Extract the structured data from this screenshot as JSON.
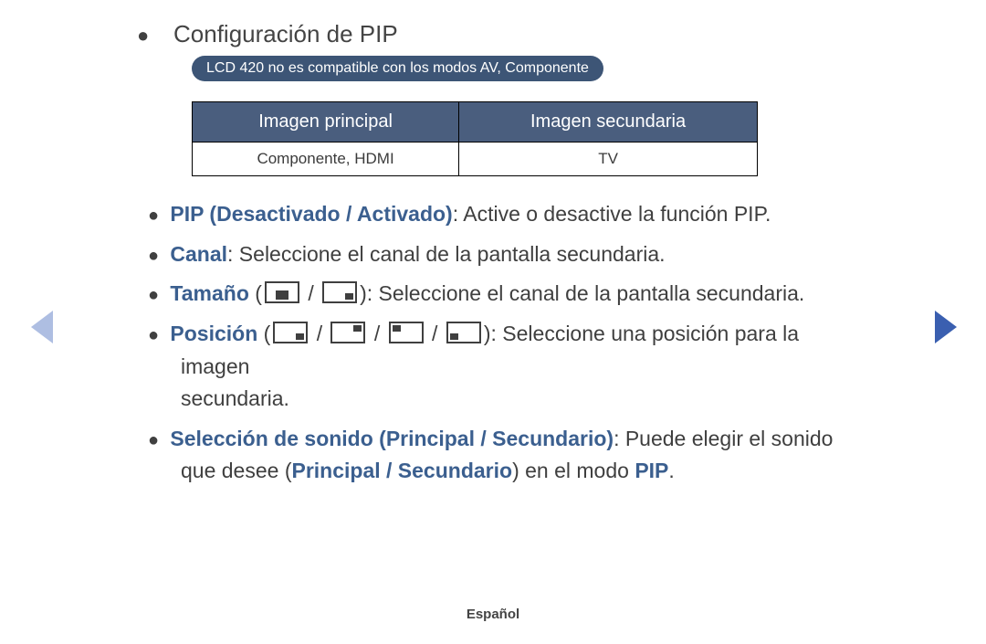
{
  "title": "Configuración de PIP",
  "note": "LCD 420 no es compatible con los modos AV, Componente",
  "table": {
    "headers": [
      "Imagen principal",
      "Imagen secundaria"
    ],
    "row": [
      "Componente, HDMI",
      "TV"
    ]
  },
  "items": {
    "pip": {
      "label": "PIP (Desactivado / Activado)",
      "text": ": Active o desactive la función PIP."
    },
    "canal": {
      "label": "Canal",
      "text": ": Seleccione el canal de la pantalla secundaria."
    },
    "tamano": {
      "label": "Tamaño",
      "open": " (",
      "sep": " / ",
      "close": ")",
      "text": ": Seleccione el canal de la pantalla secundaria."
    },
    "posicion": {
      "label": "Posición",
      "open": " (",
      "sep": " / ",
      "close": ")",
      "text_a": ": Seleccione una posición para la imagen ",
      "text_b": "secundaria."
    },
    "sonido": {
      "label": "Selección de sonido (Principal / Secundario)",
      "text_a": ": Puede elegir el sonido que desee (",
      "kw_a": "Principal / Secundario",
      "text_b": ") en el modo ",
      "kw_b": "PIP",
      "text_c": "."
    }
  },
  "footer": "Español",
  "colors": {
    "badge_bg": "#3d5576",
    "table_header_bg": "#4a5e7e",
    "keyword": "#3b5f8f",
    "arrow_left": "#aebee2",
    "arrow_right": "#3a5fb0",
    "text": "#3f3f3f"
  }
}
